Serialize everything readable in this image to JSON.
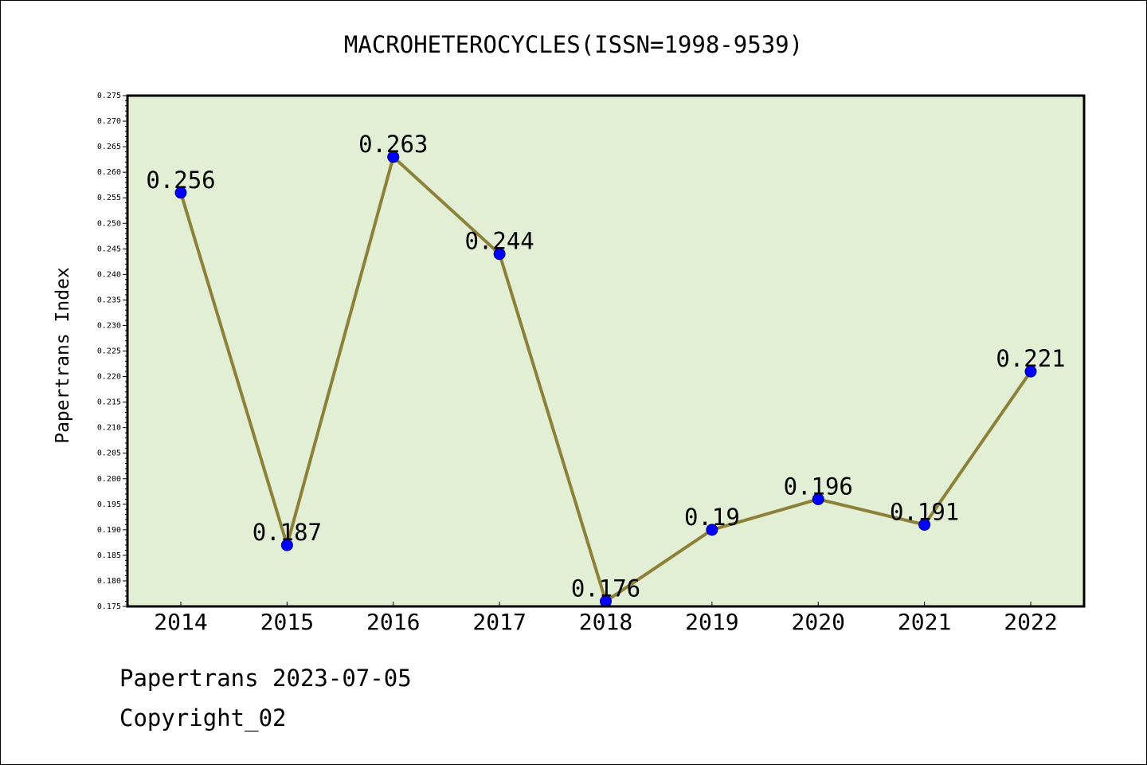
{
  "chart_data": {
    "type": "line",
    "title": "MACROHETEROCYCLES(ISSN=1998-9539)",
    "xlabel": "",
    "ylabel": "Papertrans Index",
    "categories": [
      "2014",
      "2015",
      "2016",
      "2017",
      "2018",
      "2019",
      "2020",
      "2021",
      "2022"
    ],
    "values": [
      0.256,
      0.187,
      0.263,
      0.244,
      0.176,
      0.19,
      0.196,
      0.191,
      0.221
    ],
    "data_labels": [
      "0.256",
      "0.187",
      "0.263",
      "0.244",
      "0.176",
      "0.19",
      "0.196",
      "0.191",
      "0.221"
    ],
    "ylim": [
      0.175,
      0.275
    ],
    "yticks": [
      "0.175",
      "0.180",
      "0.185",
      "0.190",
      "0.195",
      "0.200",
      "0.205",
      "0.210",
      "0.215",
      "0.220",
      "0.225",
      "0.230",
      "0.235",
      "0.240",
      "0.245",
      "0.250",
      "0.255",
      "0.260",
      "0.265",
      "0.270",
      "0.275"
    ],
    "grid": false,
    "legend": "none",
    "colors": {
      "plot_background": "#e2efd5",
      "line": "#8b8139",
      "marker": "#0000ff",
      "axes": "#000000"
    }
  },
  "footer": {
    "source_line": "Papertrans 2023-07-05",
    "copyright": "Copyright_02"
  }
}
